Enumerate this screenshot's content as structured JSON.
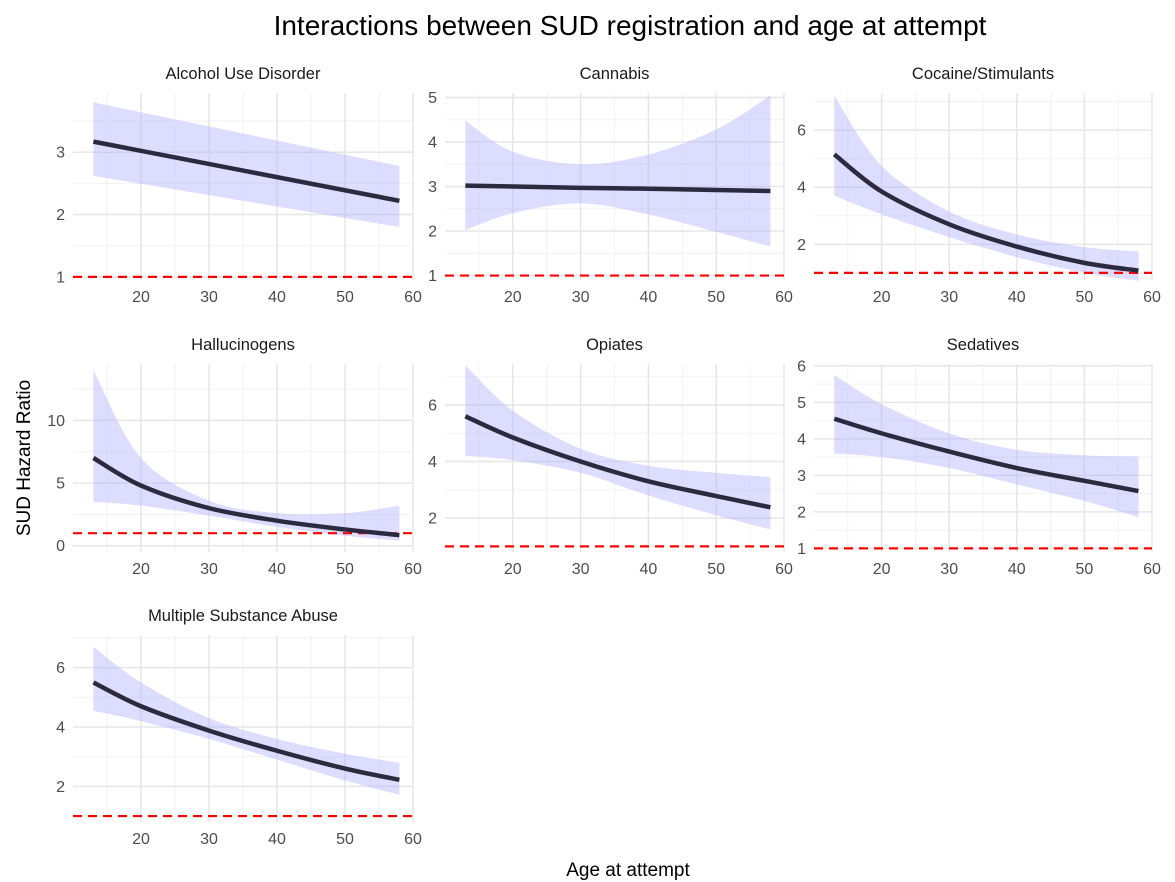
{
  "chart_data": {
    "type": "line",
    "title": "Interactions between SUD registration and age at attempt",
    "xlabel": "Age at attempt",
    "ylabel": "SUD Hazard Ratio",
    "grid": true,
    "legend": "none",
    "colors": {
      "fit_line": "#2b2a3f",
      "ci_band": "#b3b3ff",
      "reference_line": "#ff0000",
      "grid": "#e6e6e6"
    },
    "reference_value": 1,
    "panels": [
      {
        "title": "Alcohol Use Disorder",
        "xlim": [
          10,
          60
        ],
        "ylim": [
          0.95,
          3.95
        ],
        "xticks": [
          20,
          30,
          40,
          50,
          60
        ],
        "yticks": [
          1,
          2,
          3
        ],
        "x": [
          13,
          58
        ],
        "fit": [
          3.17,
          2.22
        ],
        "lower": [
          2.62,
          1.8
        ],
        "upper": [
          3.8,
          2.78
        ]
      },
      {
        "title": "Cannabis",
        "xlim": [
          10,
          60
        ],
        "ylim": [
          0.9,
          5.1
        ],
        "xticks": [
          20,
          30,
          40,
          50,
          60
        ],
        "yticks": [
          1,
          2,
          3,
          4,
          5
        ],
        "x": [
          13,
          20,
          30,
          40,
          50,
          58
        ],
        "fit": [
          3.02,
          3.0,
          2.97,
          2.95,
          2.92,
          2.9
        ],
        "lower": [
          2.02,
          2.4,
          2.62,
          2.37,
          1.98,
          1.65
        ],
        "upper": [
          4.48,
          3.78,
          3.5,
          3.72,
          4.28,
          5.05
        ]
      },
      {
        "title": "Cocaine/Stimulants",
        "xlim": [
          10,
          60
        ],
        "ylim": [
          0.75,
          7.3
        ],
        "xticks": [
          20,
          30,
          40,
          50,
          60
        ],
        "yticks": [
          2,
          4,
          6
        ],
        "x": [
          13,
          20,
          30,
          40,
          50,
          58
        ],
        "fit": [
          5.15,
          3.85,
          2.7,
          1.92,
          1.35,
          1.08
        ],
        "lower": [
          3.7,
          3.05,
          2.25,
          1.55,
          1.0,
          0.72
        ],
        "upper": [
          7.2,
          4.75,
          3.15,
          2.35,
          1.9,
          1.75
        ]
      },
      {
        "title": "Hallucinogens",
        "xlim": [
          10,
          60
        ],
        "ylim": [
          -0.5,
          14.5
        ],
        "xticks": [
          20,
          30,
          40,
          50,
          60
        ],
        "yticks": [
          0,
          5,
          10
        ],
        "x": [
          13,
          20,
          30,
          40,
          50,
          58
        ],
        "fit": [
          7.0,
          4.8,
          3.0,
          2.0,
          1.3,
          0.85
        ],
        "lower": [
          3.5,
          3.2,
          2.4,
          1.5,
          0.8,
          0.4
        ],
        "upper": [
          14.0,
          7.0,
          3.6,
          2.6,
          2.6,
          3.2
        ]
      },
      {
        "title": "Opiates",
        "xlim": [
          10,
          60
        ],
        "ylim": [
          0.8,
          7.45
        ],
        "xticks": [
          20,
          30,
          40,
          50,
          60
        ],
        "yticks": [
          2,
          4,
          6
        ],
        "x": [
          13,
          20,
          30,
          40,
          50,
          58
        ],
        "fit": [
          5.6,
          4.85,
          4.0,
          3.3,
          2.78,
          2.38
        ],
        "lower": [
          4.2,
          4.05,
          3.6,
          2.8,
          2.1,
          1.6
        ],
        "upper": [
          7.4,
          5.8,
          4.45,
          3.85,
          3.6,
          3.45
        ]
      },
      {
        "title": "Sedatives",
        "xlim": [
          10,
          60
        ],
        "ylim": [
          0.9,
          6.05
        ],
        "xticks": [
          20,
          30,
          40,
          50,
          60
        ],
        "yticks": [
          1,
          2,
          3,
          4,
          5,
          6
        ],
        "x": [
          13,
          20,
          30,
          40,
          50,
          58
        ],
        "fit": [
          4.55,
          4.15,
          3.65,
          3.2,
          2.85,
          2.57
        ],
        "lower": [
          3.6,
          3.5,
          3.2,
          2.75,
          2.3,
          1.85
        ],
        "upper": [
          5.75,
          4.95,
          4.15,
          3.7,
          3.55,
          3.52
        ]
      },
      {
        "title": "Multiple Substance Abuse",
        "xlim": [
          10,
          60
        ],
        "ylim": [
          0.8,
          7.1
        ],
        "xticks": [
          20,
          30,
          40,
          50,
          60
        ],
        "yticks": [
          2,
          4,
          6
        ],
        "x": [
          13,
          20,
          30,
          40,
          50,
          58
        ],
        "fit": [
          5.5,
          4.7,
          3.88,
          3.2,
          2.6,
          2.22
        ],
        "lower": [
          4.55,
          4.2,
          3.6,
          2.9,
          2.2,
          1.72
        ],
        "upper": [
          6.7,
          5.5,
          4.3,
          3.6,
          3.1,
          2.8
        ]
      }
    ]
  }
}
